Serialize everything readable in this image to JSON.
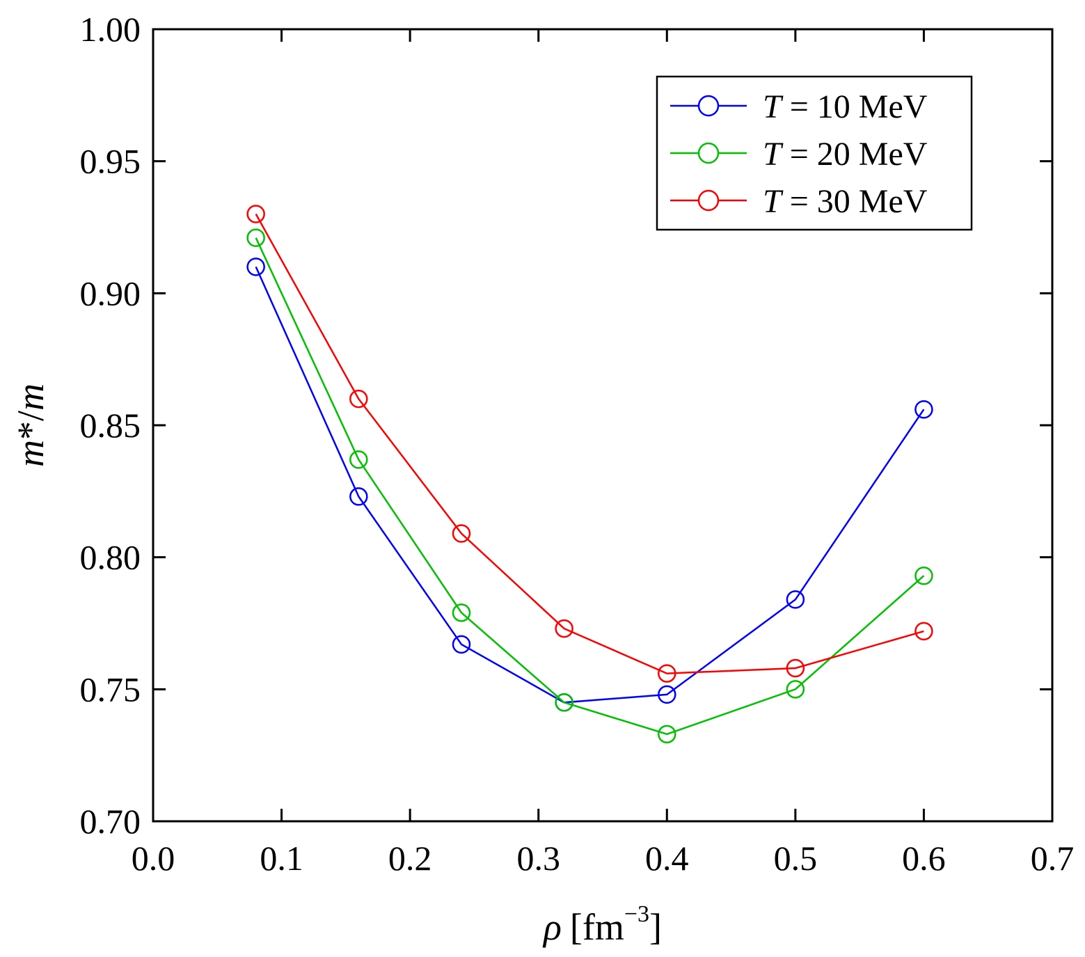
{
  "chart_data": {
    "type": "line",
    "title": "",
    "xlabel": {
      "symbol": "ρ",
      "unit": "[fm",
      "exponent": "−3",
      "close": "]"
    },
    "ylabel": {
      "italic_m": "m",
      "middle": "*/",
      "italic_m2": "m"
    },
    "xlim": [
      0.0,
      0.7
    ],
    "ylim": [
      0.7,
      1.0
    ],
    "x_ticks": [
      "0.0",
      "0.1",
      "0.2",
      "0.3",
      "0.4",
      "0.5",
      "0.6",
      "0.7"
    ],
    "y_ticks": [
      "0.70",
      "0.75",
      "0.80",
      "0.85",
      "0.90",
      "0.95",
      "1.00"
    ],
    "x_tick_values": [
      0.0,
      0.1,
      0.2,
      0.3,
      0.4,
      0.5,
      0.6,
      0.7
    ],
    "y_tick_values": [
      0.7,
      0.75,
      0.8,
      0.85,
      0.9,
      0.95,
      1.0
    ],
    "grid": false,
    "legend_position": "top-right",
    "marker": "open-circle",
    "x": [
      0.08,
      0.16,
      0.24,
      0.32,
      0.4,
      0.5,
      0.6
    ],
    "series": [
      {
        "name_var": "T",
        "name_rest": " = 10 MeV",
        "color": "#0000ff",
        "values": [
          0.91,
          0.823,
          0.767,
          0.745,
          0.748,
          0.784,
          0.856
        ]
      },
      {
        "name_var": "T",
        "name_rest": " = 20 MeV",
        "color": "#00c000",
        "values": [
          0.921,
          0.837,
          0.779,
          0.745,
          0.733,
          0.75,
          0.793
        ]
      },
      {
        "name_var": "T",
        "name_rest": " = 30 MeV",
        "color": "#ff0000",
        "values": [
          0.93,
          0.86,
          0.809,
          0.773,
          0.756,
          0.758,
          0.772
        ]
      }
    ]
  }
}
